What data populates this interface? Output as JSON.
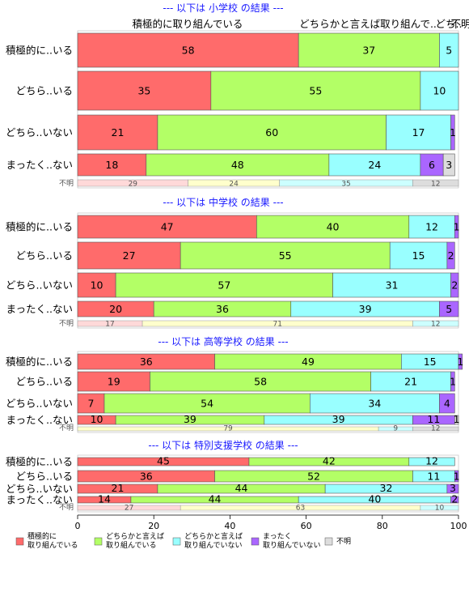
{
  "chart_data": {
    "type": "bar",
    "orientation": "horizontal",
    "stacked": true,
    "xlim": [
      0,
      100
    ],
    "xticks": [
      0,
      20,
      40,
      60,
      80,
      100
    ],
    "legend_position": "bottom",
    "top_annotations": [
      "積極的に取り組んでいる",
      "どちらかと言えば取り組んで..",
      "どち..",
      "不明"
    ],
    "series": [
      {
        "name": "積極的に\n取り組んでいる",
        "color": "#ff6b6b"
      },
      {
        "name": "どちらかと言えば\n取り組んでいる",
        "color": "#b3ff66"
      },
      {
        "name": "どちらかと言えば\n取り組んでいない",
        "color": "#99ffff"
      },
      {
        "name": "まったく\n取り組んでいない",
        "color": "#aa66ff"
      },
      {
        "name": "不明",
        "color": "#dddddd"
      }
    ],
    "unknown_label": "不明",
    "panels": [
      {
        "title": "--- 以下は 小学校 の結果 ---",
        "rows": [
          {
            "label": "積極的に..いる",
            "values": [
              58,
              37,
              5,
              0,
              0
            ]
          },
          {
            "label": "どちら..いる",
            "values": [
              35,
              55,
              10,
              0,
              0
            ]
          },
          {
            "label": "どちら..いない",
            "values": [
              21,
              60,
              17,
              1,
              0
            ]
          },
          {
            "label": "まったく..ない",
            "values": [
              18,
              48,
              24,
              6,
              3
            ]
          }
        ],
        "unknown": [
          29,
          24,
          35,
          12
        ]
      },
      {
        "title": "--- 以下は 中学校 の結果 ---",
        "rows": [
          {
            "label": "積極的に..いる",
            "values": [
              47,
              40,
              12,
              1,
              0
            ]
          },
          {
            "label": "どちら..いる",
            "values": [
              27,
              55,
              15,
              2,
              0
            ]
          },
          {
            "label": "どちら..いない",
            "values": [
              10,
              57,
              31,
              2,
              0
            ]
          },
          {
            "label": "まったく..ない",
            "values": [
              20,
              36,
              39,
              5,
              0
            ]
          }
        ],
        "unknown": [
          17,
          71,
          12,
          0
        ]
      },
      {
        "title": "--- 以下は 高等学校 の結果 ---",
        "rows": [
          {
            "label": "積極的に..いる",
            "values": [
              36,
              49,
              15,
              1,
              0
            ]
          },
          {
            "label": "どちら..いる",
            "values": [
              19,
              58,
              21,
              1,
              0
            ]
          },
          {
            "label": "どちら..いない",
            "values": [
              7,
              54,
              34,
              4,
              0
            ]
          },
          {
            "label": "まったく..ない",
            "values": [
              10,
              39,
              39,
              11,
              1
            ]
          }
        ],
        "unknown": [
          0,
          79,
          9,
          12
        ]
      },
      {
        "title": "--- 以下は 特別支援学校 の結果 ---",
        "rows": [
          {
            "label": "積極的に..いる",
            "values": [
              45,
              42,
              12,
              0,
              0
            ]
          },
          {
            "label": "どちら..いる",
            "values": [
              36,
              52,
              11,
              1,
              0
            ]
          },
          {
            "label": "どちら..いない",
            "values": [
              21,
              44,
              32,
              3,
              0
            ]
          },
          {
            "label": "まったく..ない",
            "values": [
              14,
              44,
              40,
              2,
              0
            ]
          }
        ],
        "unknown": [
          27,
          63,
          10,
          0
        ]
      }
    ]
  }
}
